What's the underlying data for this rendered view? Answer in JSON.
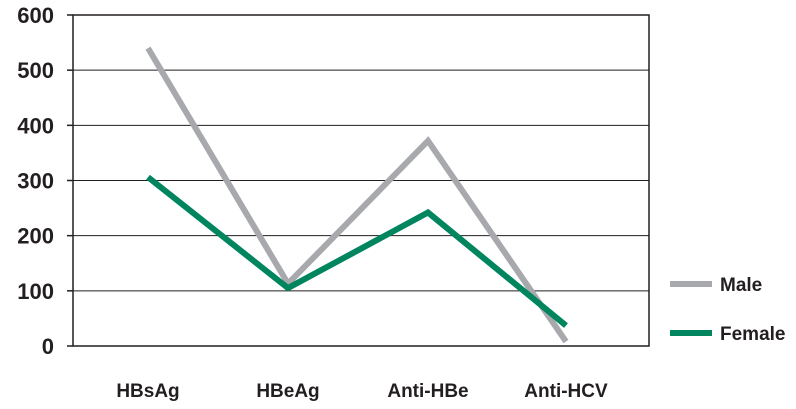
{
  "chart_data": {
    "type": "line",
    "title": "",
    "xlabel": "",
    "ylabel": "",
    "categories": [
      "HBsAg",
      "HBeAg",
      "Anti-HBe",
      "Anti-HCV"
    ],
    "ylim": [
      0,
      600
    ],
    "yticks": [
      0,
      100,
      200,
      300,
      400,
      500,
      600
    ],
    "grid": true,
    "legend_position": "right",
    "series": [
      {
        "name": "Male",
        "color": "#a7a9ac",
        "values": [
          540,
          113,
          372,
          8
        ]
      },
      {
        "name": "Female",
        "color": "#00855f",
        "values": [
          306,
          105,
          242,
          37
        ]
      }
    ]
  }
}
